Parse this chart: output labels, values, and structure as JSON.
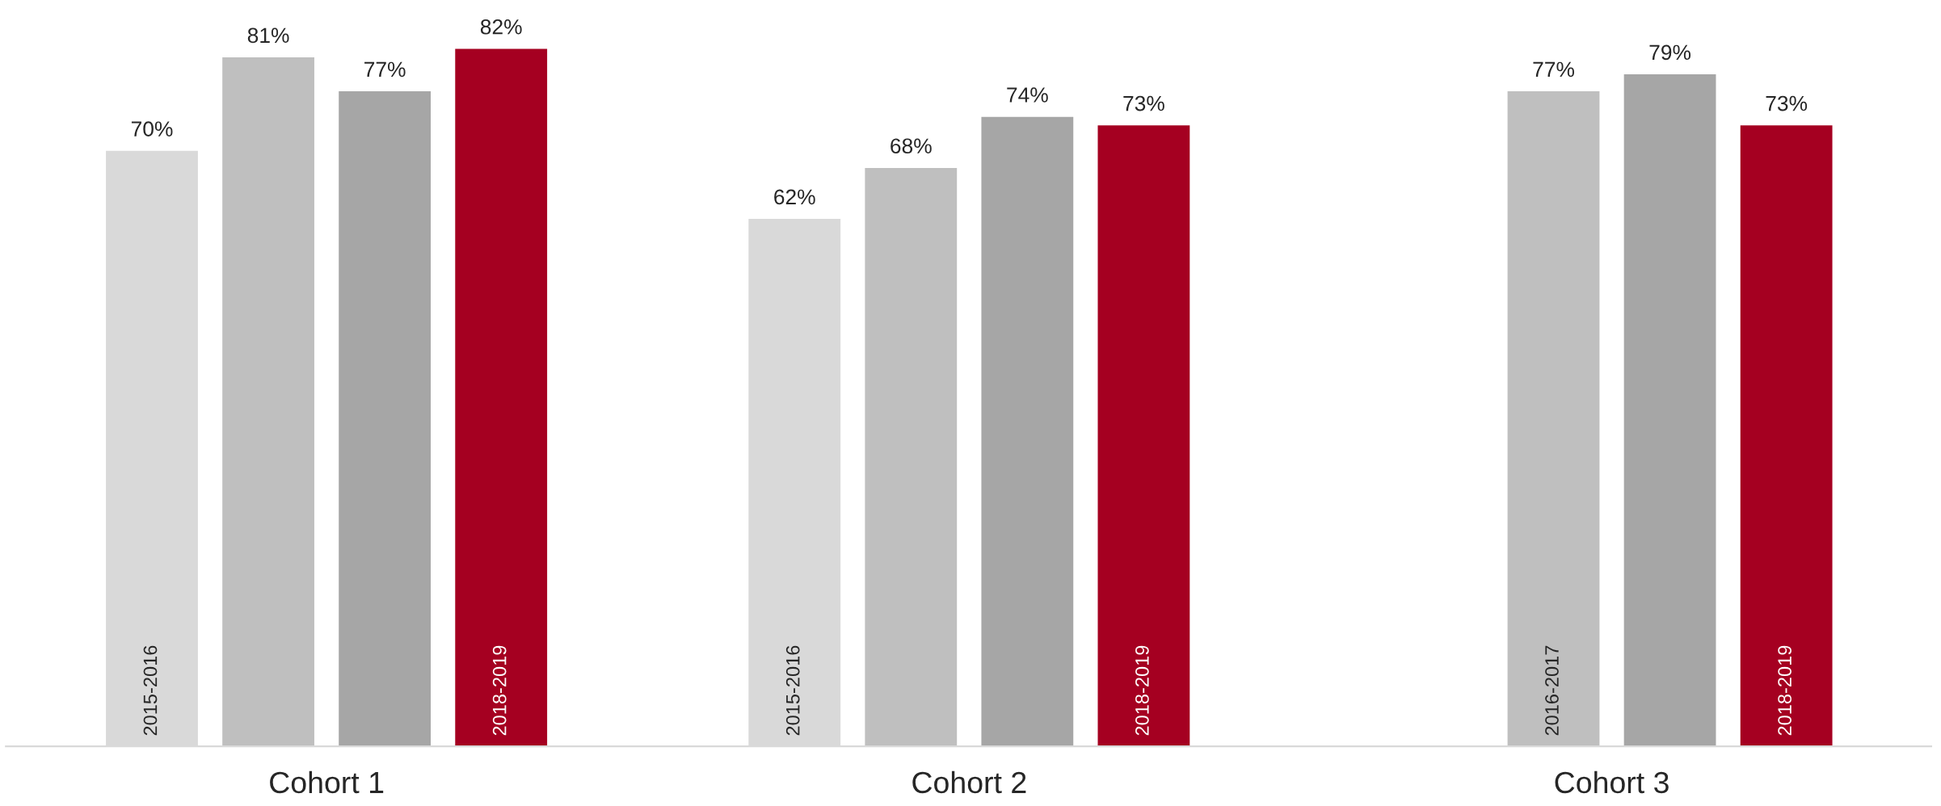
{
  "chart_data": {
    "type": "bar",
    "categories": [
      "Cohort 1",
      "Cohort 2",
      "Cohort 3"
    ],
    "series": [
      {
        "name": "2015-2016",
        "color": "#d9d9d9",
        "values": [
          70,
          62,
          null
        ],
        "value_labels": [
          "70%",
          "62%",
          null
        ]
      },
      {
        "name": "2016-2017",
        "color": "#bfbfbf",
        "values": [
          81,
          68,
          77
        ],
        "value_labels": [
          "81%",
          "68%",
          "77%"
        ]
      },
      {
        "color": "#a6a6a6",
        "values": [
          77,
          74,
          79
        ],
        "value_labels": [
          "77%",
          "74%",
          "79%"
        ]
      },
      {
        "name": "2018-2019",
        "color": "#a50021",
        "values": [
          82,
          73,
          73
        ],
        "value_labels": [
          "82%",
          "73%",
          "73%"
        ]
      }
    ],
    "tick_labels": "x",
    "grid": false,
    "legend": false
  }
}
